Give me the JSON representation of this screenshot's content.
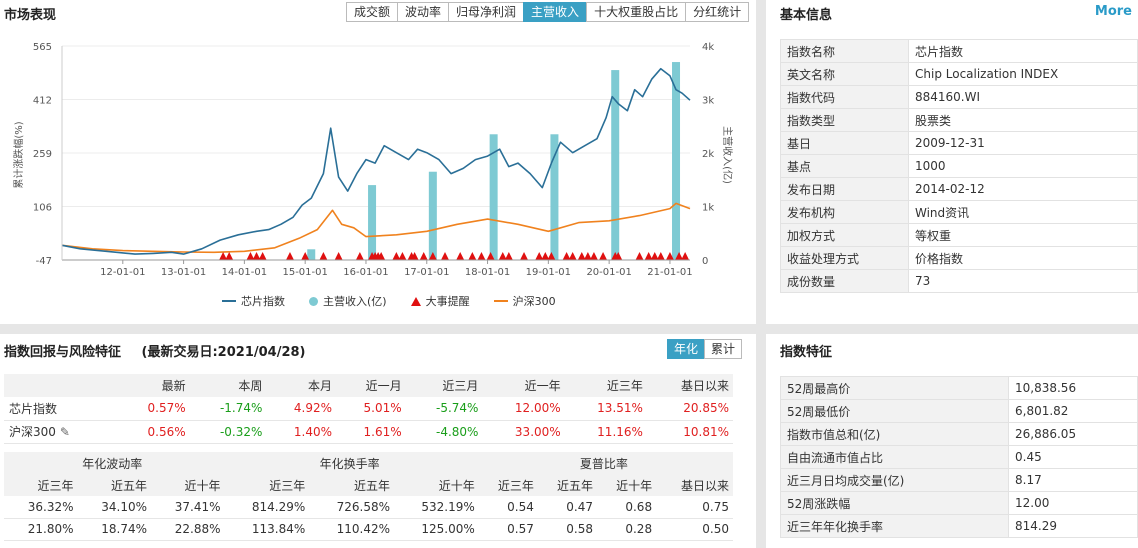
{
  "market": {
    "title": "市场表现",
    "tabs": [
      "成交额",
      "波动率",
      "归母净利润",
      "主营收入",
      "十大权重股占比",
      "分红统计"
    ],
    "active_tab": "主营收入",
    "legend": [
      "芯片指数",
      "主营收入(亿)",
      "大事提醒",
      "沪深300"
    ]
  },
  "chart_data": {
    "type": "line",
    "title": "",
    "ylabel": "累计涨跌幅(%)",
    "y2label": "主营收入(亿)",
    "ylim": [
      -47,
      565
    ],
    "y2lim": [
      0,
      4000
    ],
    "yticks": [
      "565",
      "412",
      "259",
      "106",
      "-47"
    ],
    "y2ticks": [
      "4k",
      "3k",
      "2k",
      "1k",
      "0"
    ],
    "xticks": [
      "12-01-01",
      "13-01-01",
      "14-01-01",
      "15-01-01",
      "16-01-01",
      "17-01-01",
      "18-01-01",
      "19-01-01",
      "20-01-01",
      "21-01-01"
    ],
    "x_start": 2011.0,
    "x_end": 2021.33,
    "series": [
      {
        "name": "芯片指数",
        "color": "#2a6f97",
        "x": [
          2011.0,
          2011.3,
          2011.6,
          2011.9,
          2012.2,
          2012.5,
          2012.8,
          2013.0,
          2013.3,
          2013.6,
          2013.9,
          2014.2,
          2014.4,
          2014.6,
          2014.8,
          2014.95,
          2015.1,
          2015.3,
          2015.42,
          2015.55,
          2015.7,
          2015.85,
          2016.0,
          2016.15,
          2016.3,
          2016.5,
          2016.7,
          2016.85,
          2017.0,
          2017.2,
          2017.4,
          2017.6,
          2017.8,
          2018.0,
          2018.2,
          2018.35,
          2018.5,
          2018.7,
          2018.9,
          2019.05,
          2019.2,
          2019.4,
          2019.6,
          2019.8,
          2019.95,
          2020.05,
          2020.15,
          2020.3,
          2020.42,
          2020.55,
          2020.7,
          2020.85,
          2021.0,
          2021.1,
          2021.2,
          2021.33
        ],
        "values": [
          -5,
          -15,
          -20,
          -25,
          -30,
          -28,
          -25,
          -30,
          -15,
          10,
          25,
          35,
          40,
          55,
          75,
          110,
          130,
          200,
          330,
          190,
          150,
          200,
          240,
          230,
          280,
          260,
          240,
          270,
          260,
          240,
          200,
          215,
          240,
          250,
          270,
          220,
          230,
          200,
          160,
          230,
          290,
          260,
          280,
          300,
          360,
          420,
          400,
          380,
          440,
          420,
          470,
          500,
          480,
          440,
          430,
          410
        ]
      },
      {
        "name": "沪深300",
        "color": "#f0821e",
        "x": [
          2011.0,
          2011.5,
          2012.0,
          2012.5,
          2013.0,
          2013.5,
          2014.0,
          2014.5,
          2014.9,
          2015.2,
          2015.45,
          2015.6,
          2015.8,
          2016.0,
          2016.5,
          2017.0,
          2017.5,
          2018.0,
          2018.5,
          2019.0,
          2019.5,
          2020.0,
          2020.5,
          2021.0,
          2021.1,
          2021.33
        ],
        "values": [
          -5,
          -15,
          -20,
          -22,
          -24,
          -25,
          -22,
          -12,
          15,
          40,
          95,
          55,
          45,
          20,
          25,
          35,
          55,
          70,
          55,
          35,
          60,
          65,
          80,
          100,
          115,
          100
        ]
      }
    ],
    "bars": {
      "name": "主营收入(亿)",
      "color": "#7ecad3",
      "x": [
        2015.1,
        2016.1,
        2017.1,
        2018.1,
        2019.1,
        2020.1,
        2021.1
      ],
      "values": [
        200,
        1400,
        1650,
        2350,
        2350,
        3550,
        3700
      ]
    },
    "events": {
      "name": "大事提醒",
      "color": "#e01010",
      "x": [
        2013.65,
        2013.75,
        2014.1,
        2014.2,
        2014.3,
        2014.75,
        2015.0,
        2015.3,
        2015.55,
        2015.9,
        2016.1,
        2016.15,
        2016.2,
        2016.25,
        2016.5,
        2016.6,
        2016.75,
        2016.8,
        2016.95,
        2017.1,
        2017.3,
        2017.55,
        2017.75,
        2017.9,
        2018.05,
        2018.25,
        2018.35,
        2018.6,
        2018.85,
        2018.95,
        2019.05,
        2019.3,
        2019.4,
        2019.55,
        2019.65,
        2019.75,
        2019.9,
        2020.1,
        2020.15,
        2020.5,
        2020.65,
        2020.75,
        2020.85,
        2021.0,
        2021.15,
        2021.25
      ]
    },
    "grid": true
  },
  "info": {
    "title": "基本信息",
    "more": "More",
    "rows": [
      {
        "k": "指数名称",
        "v": "芯片指数"
      },
      {
        "k": "英文名称",
        "v": "Chip Localization INDEX"
      },
      {
        "k": "指数代码",
        "v": "884160.WI"
      },
      {
        "k": "指数类型",
        "v": "股票类"
      },
      {
        "k": "基日",
        "v": "2009-12-31"
      },
      {
        "k": "基点",
        "v": "1000"
      },
      {
        "k": "发布日期",
        "v": "2014-02-12"
      },
      {
        "k": "发布机构",
        "v": "Wind资讯"
      },
      {
        "k": "加权方式",
        "v": "等权重"
      },
      {
        "k": "收益处理方式",
        "v": "价格指数"
      },
      {
        "k": "成份数量",
        "v": "73"
      }
    ]
  },
  "returns": {
    "title": "指数回报与风险特征",
    "subtitle": "(最新交易日:2021/04/28)",
    "tabs": [
      "年化",
      "累计"
    ],
    "active_tab": "年化",
    "headers": [
      "",
      "最新",
      "本周",
      "本月",
      "近一月",
      "近三月",
      "近一年",
      "近三年",
      "基日以来"
    ],
    "rows": [
      {
        "name": "芯片指数",
        "values": [
          "0.57%",
          "-1.74%",
          "4.92%",
          "5.01%",
          "-5.74%",
          "12.00%",
          "13.51%",
          "20.85%"
        ],
        "colors": [
          "red",
          "green",
          "red",
          "red",
          "green",
          "red",
          "red",
          "red"
        ]
      },
      {
        "name": "沪深300",
        "values": [
          "0.56%",
          "-0.32%",
          "1.40%",
          "1.61%",
          "-4.80%",
          "33.00%",
          "11.16%",
          "10.81%"
        ],
        "colors": [
          "red",
          "green",
          "red",
          "red",
          "green",
          "red",
          "red",
          "red"
        ]
      }
    ]
  },
  "risk": {
    "groups": [
      "年化波动率",
      "年化换手率",
      "夏普比率"
    ],
    "headers": [
      "近三年",
      "近五年",
      "近十年",
      "近三年",
      "近五年",
      "近十年",
      "近三年",
      "近五年",
      "近十年",
      "基日以来"
    ],
    "rows": [
      [
        "36.32%",
        "34.10%",
        "37.41%",
        "814.29%",
        "726.58%",
        "532.19%",
        "0.54",
        "0.47",
        "0.68",
        "0.75"
      ],
      [
        "21.80%",
        "18.74%",
        "22.88%",
        "113.84%",
        "110.42%",
        "125.00%",
        "0.57",
        "0.58",
        "0.28",
        "0.50"
      ]
    ]
  },
  "features": {
    "title": "指数特征",
    "rows": [
      {
        "k": "52周最高价",
        "v": "10,838.56"
      },
      {
        "k": "52周最低价",
        "v": "6,801.82"
      },
      {
        "k": "指数市值总和(亿)",
        "v": "26,886.05"
      },
      {
        "k": "自由流通市值占比",
        "v": "0.45"
      },
      {
        "k": "近三月日均成交量(亿)",
        "v": "8.17"
      },
      {
        "k": "52周涨跌幅",
        "v": "12.00"
      },
      {
        "k": "近三年年化换手率",
        "v": "814.29"
      }
    ]
  }
}
